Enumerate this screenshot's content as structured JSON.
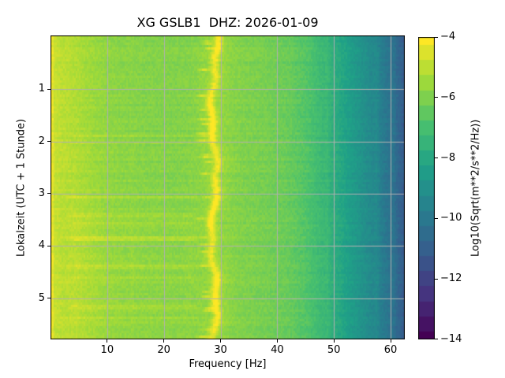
{
  "chart_data": {
    "type": "heatmap",
    "subtype": "spectrogram",
    "title": "XG GSLB1  DHZ: 2026-01-09",
    "xlabel": "Frequency [Hz]",
    "ylabel": "Lokalzeit (UTC + 1 Stunde)",
    "x_range_hz": [
      0,
      62.5
    ],
    "y_range_hours": [
      0,
      5.82
    ],
    "x_ticks": [
      10,
      20,
      30,
      40,
      50,
      60
    ],
    "y_ticks": [
      1,
      2,
      3,
      4,
      5
    ],
    "grid": true,
    "grid_color": "#b0b0b0",
    "colormap": "viridis",
    "viridis_stops": [
      "#440154",
      "#46327e",
      "#365c8d",
      "#277f8e",
      "#1fa187",
      "#4ac16d",
      "#a0da39",
      "#fde725"
    ],
    "colorbar": {
      "label": "Log10(Sqrt(m**2/s**2/Hz))",
      "tick_labels": [
        "−4",
        "−6",
        "−8",
        "−10",
        "−12",
        "−14"
      ],
      "tick_values": [
        -4,
        -6,
        -8,
        -10,
        -12,
        -14
      ],
      "range": [
        -14,
        -4
      ],
      "quantize_step": 0.5
    },
    "spectrum_profile": {
      "freq_hz": [
        0,
        0.5,
        2,
        4,
        7,
        10,
        14,
        18,
        22,
        26,
        30,
        34,
        38,
        42,
        45,
        48,
        51,
        54,
        57,
        60,
        62.5
      ],
      "level_log10": [
        -4.5,
        -4.8,
        -5.0,
        -5.15,
        -5.45,
        -5.7,
        -5.85,
        -5.9,
        -5.95,
        -5.85,
        -5.75,
        -5.95,
        -6.1,
        -6.35,
        -6.7,
        -7.3,
        -8.0,
        -8.7,
        -9.4,
        -10.3,
        -11.2
      ]
    },
    "features": {
      "peak_band_center_hz": 28.8,
      "peak_band_level_log10": -4.4,
      "peak_band_wander_hz": 0.8,
      "narrowband_lines_hz": [
        14.3,
        48.7,
        57.4,
        60.4
      ],
      "daytime_noise_boost_hours": [
        2.2,
        5.8
      ],
      "noise_level_range_log10": [
        -6.0,
        -5.5
      ]
    }
  }
}
